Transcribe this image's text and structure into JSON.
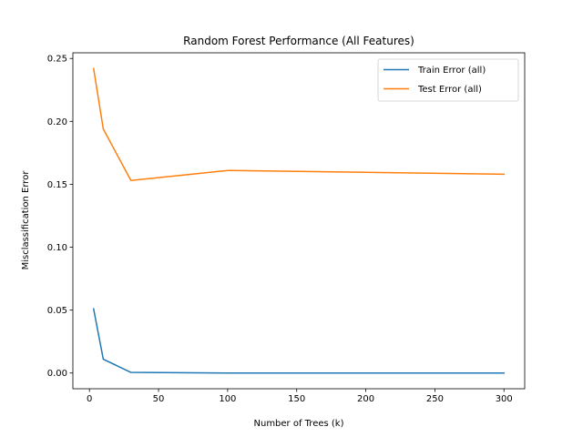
{
  "chart_data": {
    "type": "line",
    "title": "Random Forest Performance (All Features)",
    "xlabel": "Number of Trees (k)",
    "ylabel": "Misclassification Error",
    "xlim": [
      -12,
      315
    ],
    "ylim": [
      -0.0125,
      0.2545
    ],
    "xticks": [
      0,
      50,
      100,
      150,
      200,
      250,
      300
    ],
    "yticks": [
      0.0,
      0.05,
      0.1,
      0.15,
      0.2,
      0.25
    ],
    "ytick_labels": [
      "0.00",
      "0.05",
      "0.10",
      "0.15",
      "0.20",
      "0.25"
    ],
    "grid": false,
    "legend_position": "top-right",
    "x": [
      3,
      10,
      30,
      100,
      300
    ],
    "series": [
      {
        "name": "Train Error (all)",
        "color": "#1f77b4",
        "values": [
          0.051,
          0.011,
          0.0005,
          0.0,
          0.0
        ]
      },
      {
        "name": "Test Error (all)",
        "color": "#ff7f0e",
        "values": [
          0.242,
          0.194,
          0.153,
          0.161,
          0.158
        ]
      }
    ]
  }
}
